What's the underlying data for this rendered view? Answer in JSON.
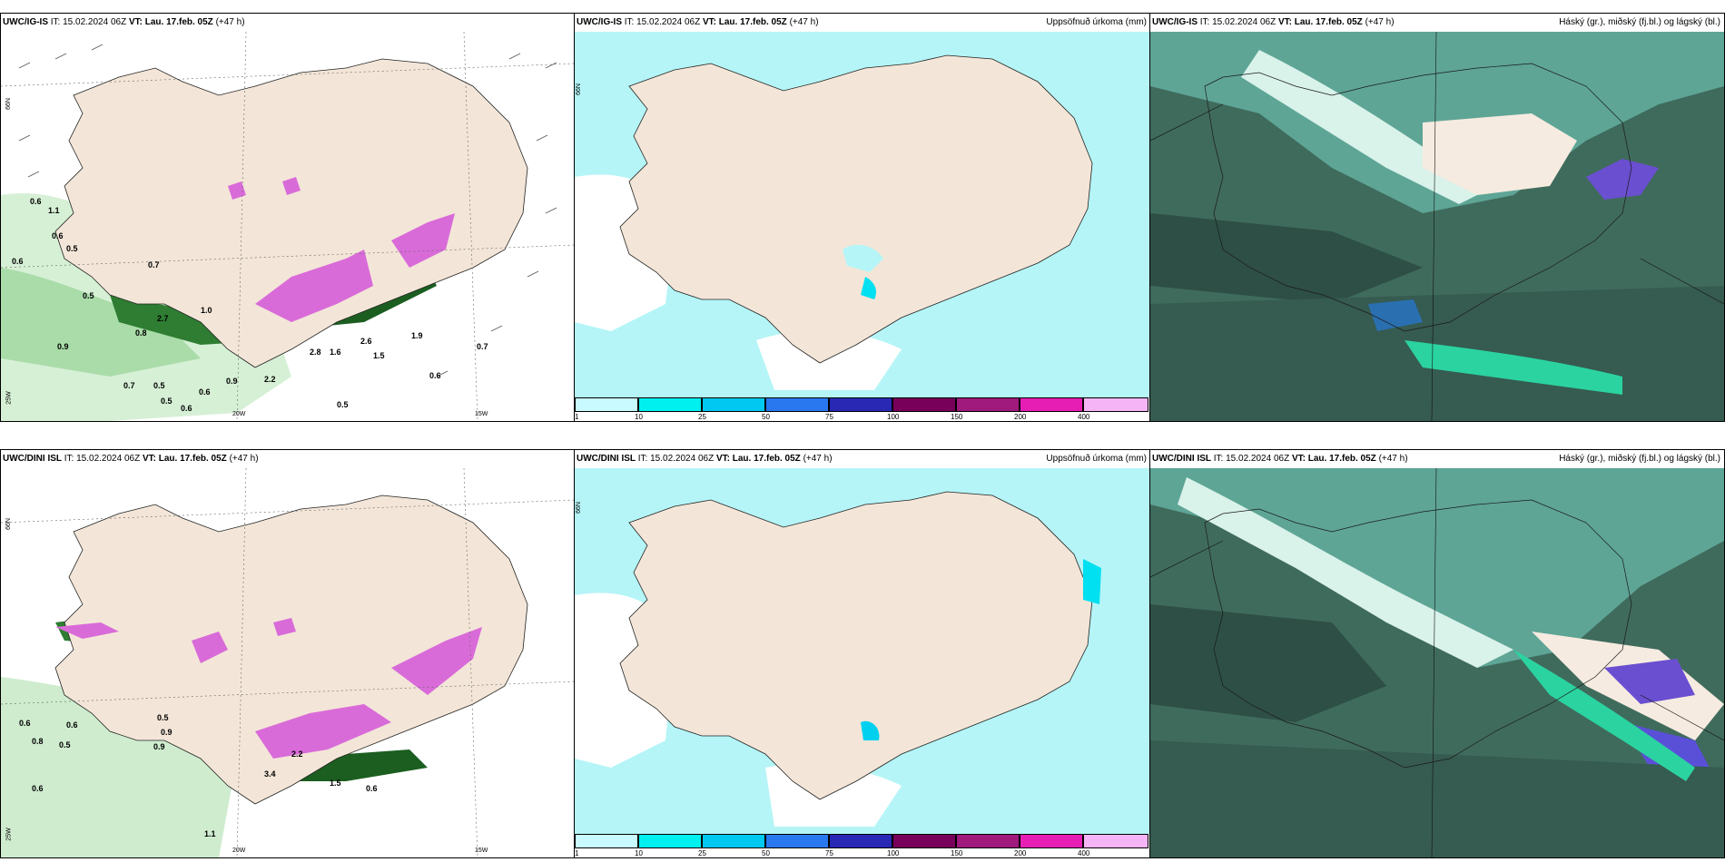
{
  "rows": [
    {
      "model": "UWC/IG-IS",
      "it_label": "IT:",
      "it_value": "15.02.2024 06Z",
      "vt_label": "VT:",
      "vt_value": "Lau. 17.feb. 05Z",
      "lead": "(+47 h)"
    },
    {
      "model": "UWC/DINI ISL",
      "it_label": "IT:",
      "it_value": "15.02.2024 06Z",
      "vt_label": "VT:",
      "vt_value": "Lau. 17.feb. 05Z",
      "lead": "(+47 h)"
    }
  ],
  "titles": {
    "precip": "Uppsöfnuð úrkoma (mm)",
    "cloud": "Háský (gr.), miðský (fj.bl.) og lágský (bl.)"
  },
  "axis_labels": {
    "lat66": "66N",
    "lon25": "25W",
    "lon20": "20W",
    "lon15": "15W"
  },
  "colorbar": {
    "ticks": [
      "1",
      "10",
      "25",
      "50",
      "75",
      "100",
      "150",
      "200",
      "400"
    ],
    "colors": [
      "#c8faff",
      "#00f0f0",
      "#00c8f0",
      "#2a78f0",
      "#2828b4",
      "#78005a",
      "#a0197d",
      "#e61eb4",
      "#f5b4f5"
    ]
  },
  "panel1_labels": [
    "0.6",
    "1.1",
    "0.6",
    "0.5",
    "0.6",
    "0.7",
    "0.5",
    "0.8",
    "2.7",
    "1.0",
    "0.9",
    "0.7",
    "0.5",
    "0.5",
    "0.6",
    "0.6",
    "0.9",
    "2.2",
    "2.8",
    "1.6",
    "2.6",
    "1.5",
    "1.9",
    "0.7",
    "0.6",
    "0.5"
  ],
  "panel4_labels": [
    "0.6",
    "0.6",
    "0.8",
    "0.5",
    "0.9",
    "0.5",
    "0.9",
    "0.6",
    "1.5",
    "0.6",
    "1.1",
    "2.2",
    "3.4"
  ]
}
